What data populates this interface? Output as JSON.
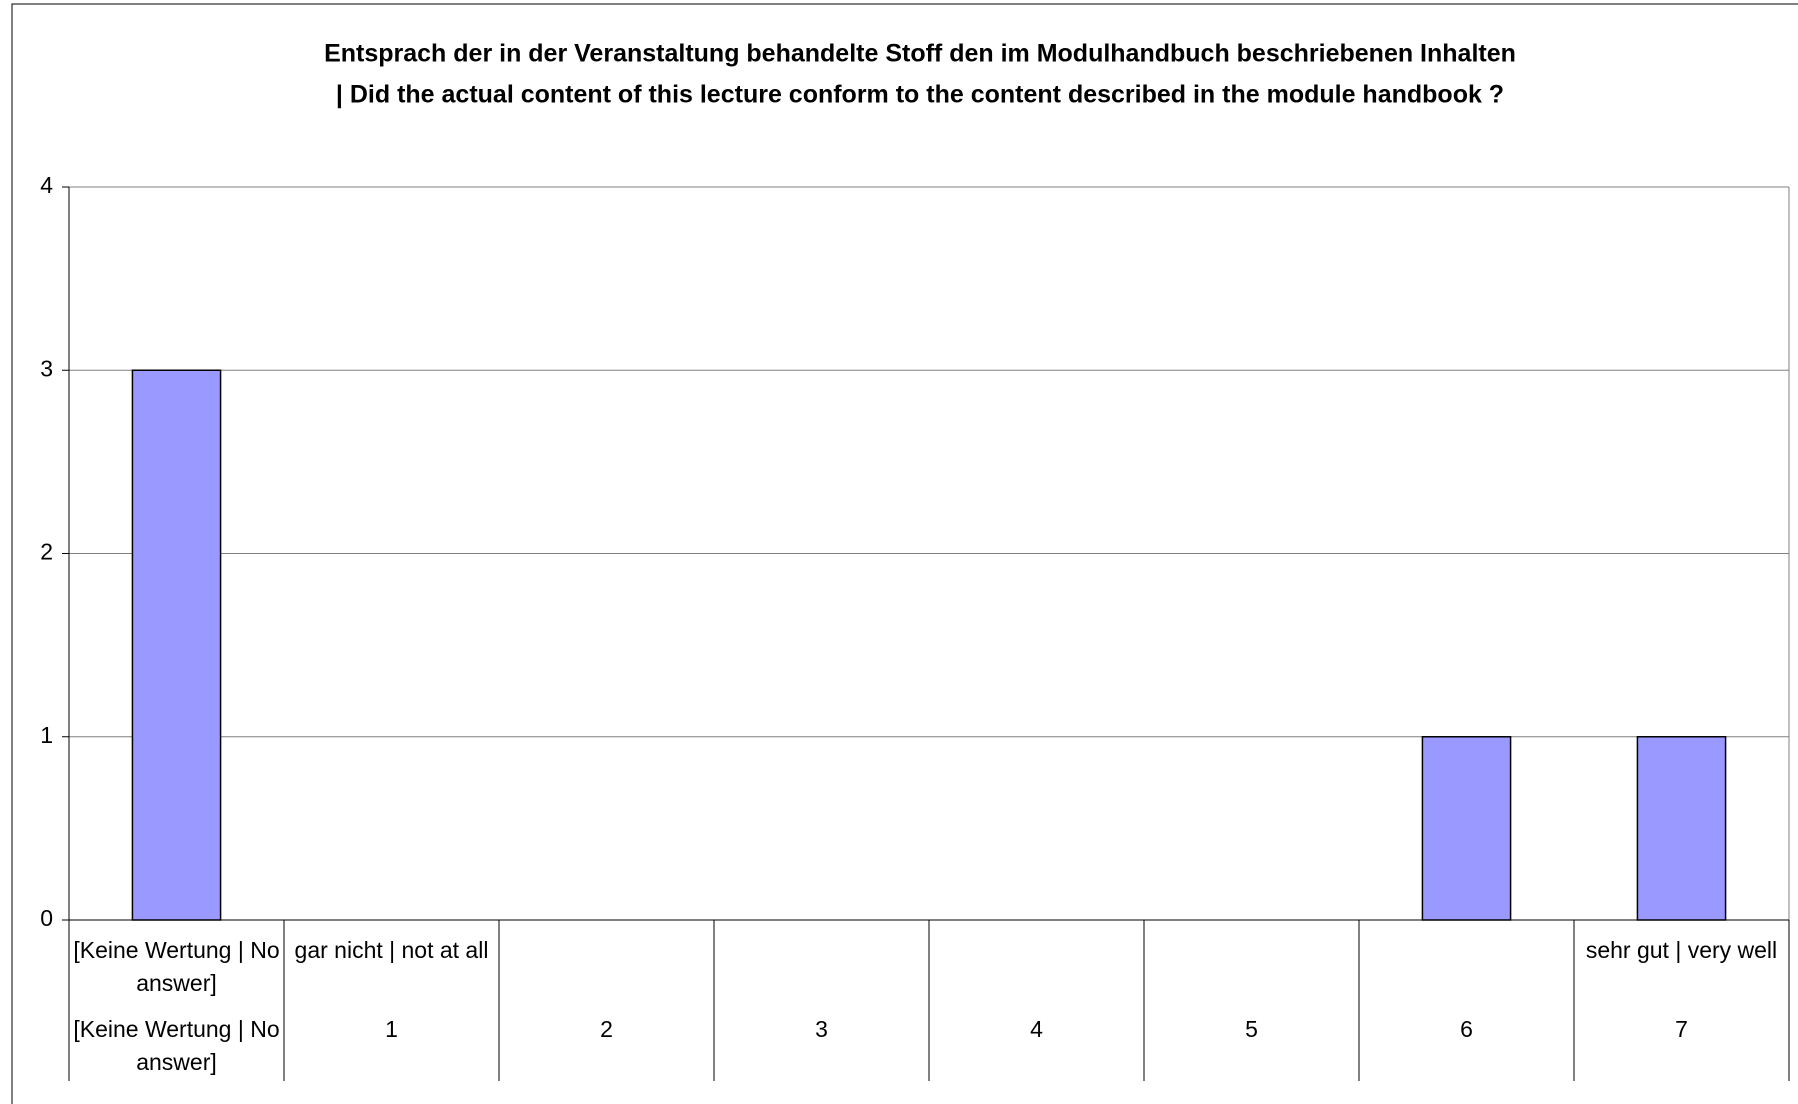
{
  "chart_data": {
    "type": "bar",
    "title": [
      "Entsprach der in der Veranstaltung behandelte Stoff den im Modulhandbuch beschriebenen Inhalten",
      "| Did the actual content of this lecture conform to the content described in the module handbook ?"
    ],
    "category_groups": [
      "[Keine Wertung | No answer]",
      "gar nicht | not at all",
      null,
      null,
      null,
      null,
      null,
      "sehr gut | very well"
    ],
    "categories": [
      "[Keine Wertung | No answer]",
      "1",
      "2",
      "3",
      "4",
      "5",
      "6",
      "7"
    ],
    "values": [
      3,
      0,
      0,
      0,
      0,
      0,
      1,
      1
    ],
    "color": "#9999ff",
    "ylim": [
      0,
      4
    ],
    "yticks": [
      0,
      1,
      2,
      3,
      4
    ],
    "grid": true
  }
}
